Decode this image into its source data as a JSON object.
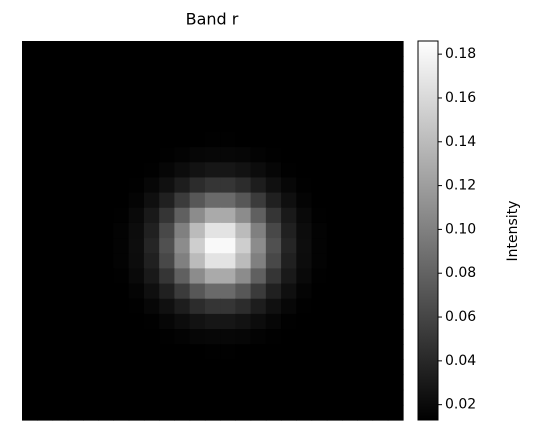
{
  "chart_data": {
    "type": "heatmap",
    "title": "Band r",
    "colorbar_label": "Intensity",
    "colormap": "gray",
    "clim": [
      0.013,
      0.186
    ],
    "cticks": [
      0.02,
      0.04,
      0.06,
      0.08,
      {
        "value": 0.1,
        "label": "0.10"
      },
      0.12,
      0.14,
      0.16,
      0.18
    ],
    "z": [
      [
        0.012,
        0.012,
        0.012,
        0.012,
        0.012,
        0.012,
        0.012,
        0.012,
        0.012,
        0.012,
        0.012,
        0.012,
        0.012,
        0.012,
        0.012,
        0.012,
        0.012,
        0.012,
        0.012,
        0.012,
        0.012,
        0.012,
        0.012,
        0.012,
        0.012
      ],
      [
        0.012,
        0.012,
        0.012,
        0.012,
        0.012,
        0.012,
        0.012,
        0.012,
        0.012,
        0.012,
        0.012,
        0.012,
        0.012,
        0.012,
        0.012,
        0.012,
        0.012,
        0.012,
        0.012,
        0.012,
        0.012,
        0.012,
        0.012,
        0.012,
        0.012
      ],
      [
        0.012,
        0.012,
        0.012,
        0.012,
        0.012,
        0.012,
        0.012,
        0.012,
        0.012,
        0.012,
        0.012,
        0.012,
        0.012,
        0.012,
        0.012,
        0.012,
        0.012,
        0.012,
        0.012,
        0.012,
        0.012,
        0.012,
        0.012,
        0.012,
        0.012
      ],
      [
        0.012,
        0.012,
        0.012,
        0.012,
        0.012,
        0.012,
        0.012,
        0.012,
        0.012,
        0.012,
        0.012,
        0.012,
        0.012,
        0.012,
        0.012,
        0.012,
        0.012,
        0.012,
        0.012,
        0.012,
        0.012,
        0.012,
        0.012,
        0.012,
        0.012
      ],
      [
        0.012,
        0.012,
        0.012,
        0.012,
        0.012,
        0.012,
        0.012,
        0.012,
        0.012,
        0.012,
        0.012,
        0.012,
        0.012,
        0.012,
        0.012,
        0.012,
        0.012,
        0.012,
        0.012,
        0.012,
        0.012,
        0.012,
        0.012,
        0.012,
        0.012
      ],
      [
        0.012,
        0.012,
        0.012,
        0.012,
        0.012,
        0.012,
        0.012,
        0.012,
        0.012,
        0.012,
        0.012,
        0.012,
        0.012,
        0.012,
        0.012,
        0.012,
        0.012,
        0.012,
        0.012,
        0.012,
        0.012,
        0.012,
        0.012,
        0.012,
        0.012
      ],
      [
        0.012,
        0.012,
        0.012,
        0.012,
        0.012,
        0.012,
        0.012,
        0.012,
        0.012,
        0.013,
        0.013,
        0.013,
        0.014,
        0.014,
        0.013,
        0.013,
        0.013,
        0.012,
        0.012,
        0.012,
        0.012,
        0.012,
        0.012,
        0.012,
        0.012
      ],
      [
        0.012,
        0.012,
        0.012,
        0.012,
        0.012,
        0.012,
        0.012,
        0.012,
        0.013,
        0.014,
        0.015,
        0.017,
        0.018,
        0.018,
        0.017,
        0.015,
        0.014,
        0.013,
        0.012,
        0.012,
        0.012,
        0.012,
        0.012,
        0.012,
        0.012
      ],
      [
        0.012,
        0.012,
        0.012,
        0.012,
        0.012,
        0.012,
        0.012,
        0.013,
        0.014,
        0.017,
        0.021,
        0.025,
        0.028,
        0.028,
        0.025,
        0.021,
        0.017,
        0.014,
        0.013,
        0.012,
        0.012,
        0.012,
        0.012,
        0.012,
        0.012
      ],
      [
        0.012,
        0.012,
        0.012,
        0.012,
        0.012,
        0.012,
        0.013,
        0.014,
        0.018,
        0.024,
        0.033,
        0.043,
        0.049,
        0.049,
        0.043,
        0.033,
        0.024,
        0.018,
        0.014,
        0.013,
        0.012,
        0.012,
        0.012,
        0.012,
        0.012
      ],
      [
        0.012,
        0.012,
        0.012,
        0.012,
        0.012,
        0.012,
        0.013,
        0.016,
        0.023,
        0.035,
        0.053,
        0.072,
        0.085,
        0.085,
        0.072,
        0.053,
        0.035,
        0.023,
        0.016,
        0.013,
        0.012,
        0.012,
        0.012,
        0.012,
        0.012
      ],
      [
        0.012,
        0.012,
        0.012,
        0.012,
        0.012,
        0.013,
        0.014,
        0.019,
        0.03,
        0.049,
        0.078,
        0.108,
        0.128,
        0.128,
        0.108,
        0.078,
        0.049,
        0.03,
        0.019,
        0.014,
        0.013,
        0.012,
        0.012,
        0.012,
        0.012
      ],
      [
        0.012,
        0.012,
        0.012,
        0.012,
        0.012,
        0.013,
        0.015,
        0.021,
        0.035,
        0.062,
        0.1,
        0.14,
        0.167,
        0.167,
        0.14,
        0.1,
        0.062,
        0.035,
        0.021,
        0.015,
        0.013,
        0.012,
        0.012,
        0.012,
        0.012
      ],
      [
        0.012,
        0.012,
        0.012,
        0.012,
        0.012,
        0.013,
        0.015,
        0.022,
        0.038,
        0.067,
        0.108,
        0.153,
        0.182,
        0.182,
        0.153,
        0.108,
        0.067,
        0.038,
        0.022,
        0.015,
        0.013,
        0.012,
        0.012,
        0.012,
        0.012
      ],
      [
        0.012,
        0.012,
        0.012,
        0.012,
        0.012,
        0.013,
        0.015,
        0.021,
        0.035,
        0.062,
        0.1,
        0.14,
        0.167,
        0.167,
        0.14,
        0.1,
        0.062,
        0.035,
        0.021,
        0.015,
        0.013,
        0.012,
        0.012,
        0.012,
        0.012
      ],
      [
        0.012,
        0.012,
        0.012,
        0.012,
        0.012,
        0.013,
        0.014,
        0.019,
        0.03,
        0.049,
        0.078,
        0.108,
        0.128,
        0.128,
        0.108,
        0.078,
        0.049,
        0.03,
        0.019,
        0.014,
        0.013,
        0.012,
        0.012,
        0.012,
        0.012
      ],
      [
        0.012,
        0.012,
        0.012,
        0.012,
        0.012,
        0.012,
        0.013,
        0.016,
        0.023,
        0.035,
        0.053,
        0.072,
        0.085,
        0.085,
        0.072,
        0.053,
        0.035,
        0.023,
        0.016,
        0.013,
        0.012,
        0.012,
        0.012,
        0.012,
        0.012
      ],
      [
        0.012,
        0.012,
        0.012,
        0.012,
        0.012,
        0.012,
        0.013,
        0.014,
        0.018,
        0.024,
        0.033,
        0.043,
        0.049,
        0.049,
        0.043,
        0.033,
        0.024,
        0.018,
        0.014,
        0.013,
        0.012,
        0.012,
        0.012,
        0.012,
        0.012
      ],
      [
        0.012,
        0.012,
        0.012,
        0.012,
        0.012,
        0.012,
        0.012,
        0.013,
        0.014,
        0.017,
        0.021,
        0.025,
        0.028,
        0.028,
        0.025,
        0.021,
        0.017,
        0.014,
        0.013,
        0.012,
        0.012,
        0.012,
        0.012,
        0.012,
        0.012
      ],
      [
        0.012,
        0.012,
        0.012,
        0.012,
        0.012,
        0.012,
        0.012,
        0.012,
        0.013,
        0.014,
        0.015,
        0.017,
        0.018,
        0.018,
        0.017,
        0.015,
        0.014,
        0.013,
        0.012,
        0.012,
        0.012,
        0.012,
        0.012,
        0.012,
        0.012
      ],
      [
        0.012,
        0.012,
        0.012,
        0.012,
        0.012,
        0.012,
        0.012,
        0.012,
        0.012,
        0.013,
        0.013,
        0.013,
        0.014,
        0.014,
        0.013,
        0.013,
        0.013,
        0.012,
        0.012,
        0.012,
        0.012,
        0.012,
        0.012,
        0.012,
        0.012
      ],
      [
        0.012,
        0.012,
        0.012,
        0.012,
        0.012,
        0.012,
        0.012,
        0.012,
        0.012,
        0.012,
        0.012,
        0.012,
        0.012,
        0.012,
        0.012,
        0.012,
        0.012,
        0.012,
        0.012,
        0.012,
        0.012,
        0.012,
        0.012,
        0.012,
        0.012
      ],
      [
        0.012,
        0.012,
        0.012,
        0.012,
        0.012,
        0.012,
        0.012,
        0.012,
        0.012,
        0.012,
        0.012,
        0.012,
        0.012,
        0.012,
        0.012,
        0.012,
        0.012,
        0.012,
        0.012,
        0.012,
        0.012,
        0.012,
        0.012,
        0.012,
        0.012
      ],
      [
        0.012,
        0.012,
        0.012,
        0.012,
        0.012,
        0.012,
        0.012,
        0.012,
        0.012,
        0.012,
        0.012,
        0.012,
        0.012,
        0.012,
        0.012,
        0.012,
        0.012,
        0.012,
        0.012,
        0.012,
        0.012,
        0.012,
        0.012,
        0.012,
        0.012
      ],
      [
        0.012,
        0.012,
        0.012,
        0.012,
        0.012,
        0.012,
        0.012,
        0.012,
        0.012,
        0.012,
        0.012,
        0.012,
        0.012,
        0.012,
        0.012,
        0.012,
        0.012,
        0.012,
        0.012,
        0.012,
        0.012,
        0.012,
        0.012,
        0.012,
        0.012
      ]
    ]
  }
}
